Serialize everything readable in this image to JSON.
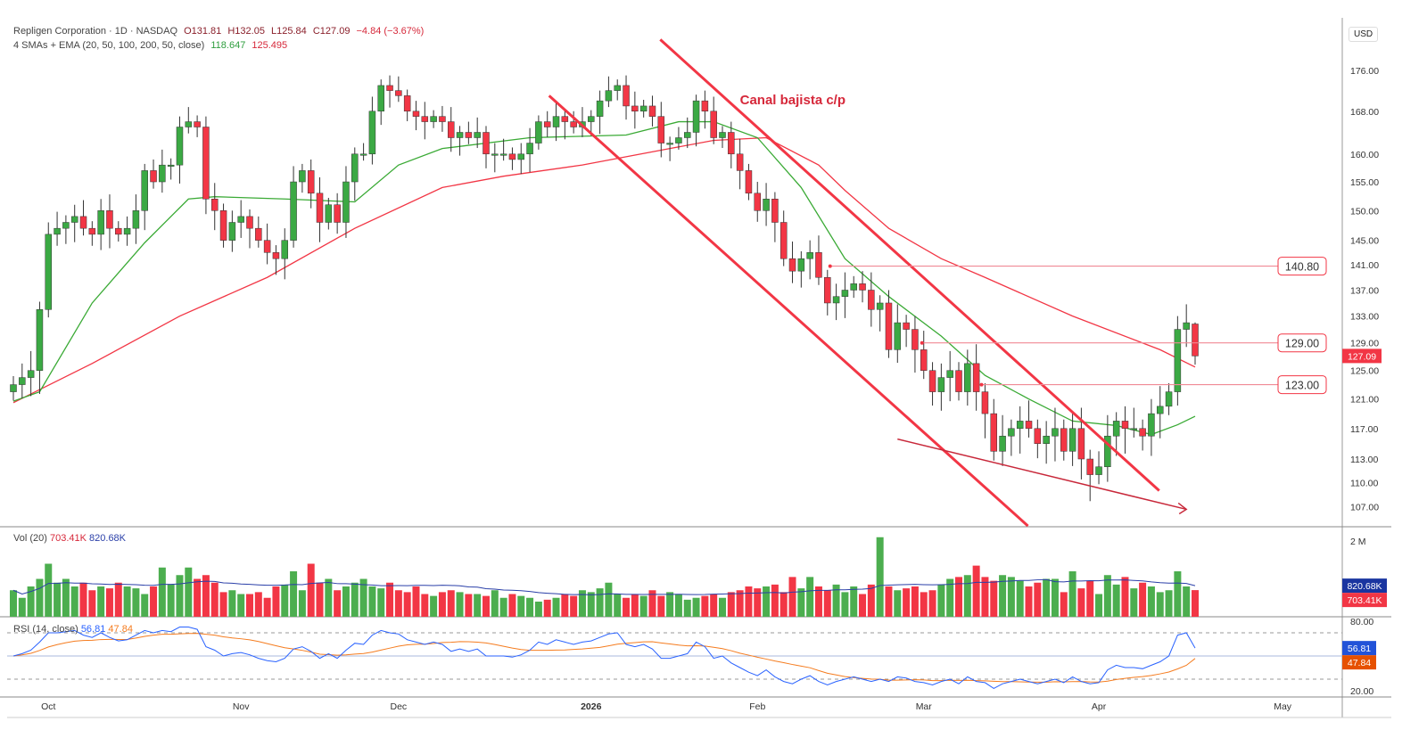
{
  "header": {
    "symbol_line": "Repligen Corporation · 1D · NASDAQ",
    "open": "O131.81",
    "high": "H132.05",
    "low": "L125.84",
    "close": "C127.09",
    "change": "−4.84 (−3.67%)",
    "ma_label": "4 SMAs + EMA (20, 50, 100, 200, 50, close)",
    "sma20_value": "118.647",
    "ema50_value": "125.495",
    "currency": "USD"
  },
  "colors": {
    "up": "#3ba944",
    "down": "#f23645",
    "sma20": "#3aaa35",
    "ema50": "#f23645",
    "rsi": "#2962ff",
    "rsi_ma": "#f57c1f",
    "vol_ma": "#2a3fa8",
    "annotation": "#f23645"
  },
  "chart_data": {
    "type": "candlestick",
    "price_scale": "log",
    "ylim": [
      104,
      184
    ],
    "price_ticks": [
      "176.00",
      "168.00",
      "160.00",
      "155.00",
      "150.00",
      "145.00",
      "141.00",
      "137.00",
      "133.00",
      "129.00",
      "125.00",
      "121.00",
      "117.00",
      "113.00",
      "110.00",
      "107.00"
    ],
    "x_labels": [
      {
        "label": "Oct",
        "index": 4
      },
      {
        "label": "Nov",
        "index": 26
      },
      {
        "label": "Dec",
        "index": 44
      },
      {
        "label": "2026",
        "index": 66
      },
      {
        "label": "Feb",
        "index": 85
      },
      {
        "label": "Mar",
        "index": 104
      },
      {
        "label": "Apr",
        "index": 124
      },
      {
        "label": "May",
        "index": 145
      }
    ],
    "last_open": 131.81,
    "last_high": 132.05,
    "last_low": 125.84,
    "closes": [
      123,
      124,
      125,
      134,
      146,
      147,
      148,
      149,
      147,
      146,
      150,
      147,
      146,
      147,
      150,
      157,
      155,
      158,
      158,
      165,
      166,
      165,
      152,
      150,
      145,
      148,
      149,
      147,
      145,
      143,
      142,
      145,
      155,
      157,
      153,
      148,
      151,
      148,
      155,
      160,
      160,
      168,
      173,
      172,
      171,
      168,
      167,
      166,
      167,
      166,
      163,
      164,
      163,
      164,
      160,
      160,
      160,
      159,
      160,
      162,
      166,
      165,
      167,
      166,
      165,
      166,
      167,
      170,
      172,
      173,
      169,
      168,
      169,
      167,
      162,
      162,
      163,
      164,
      170,
      168,
      163,
      164,
      160,
      157,
      153,
      150,
      152,
      148,
      142,
      140,
      142,
      143,
      139,
      135,
      136,
      137,
      138,
      137,
      134,
      135,
      128,
      132,
      131,
      128,
      125,
      122,
      124,
      125,
      122,
      126,
      122,
      119,
      114,
      116,
      117,
      118,
      117,
      115,
      116,
      117,
      114,
      117,
      113,
      111,
      112,
      116,
      118,
      117,
      117,
      116,
      119,
      120,
      122,
      131,
      132,
      127.09
    ],
    "sma20": [
      [
        0,
        120.7
      ],
      [
        3,
        122
      ],
      [
        9,
        135
      ],
      [
        15,
        144.6
      ],
      [
        20,
        152
      ],
      [
        23,
        152.4
      ],
      [
        31,
        152
      ],
      [
        39,
        151.5
      ],
      [
        44,
        158
      ],
      [
        49,
        161
      ],
      [
        59,
        163
      ],
      [
        70,
        163.5
      ],
      [
        76,
        166
      ],
      [
        80,
        166
      ],
      [
        85,
        163
      ],
      [
        90,
        154
      ],
      [
        95,
        142
      ],
      [
        100,
        136
      ],
      [
        106,
        130
      ],
      [
        111,
        124.3
      ],
      [
        116,
        121
      ],
      [
        121,
        118
      ],
      [
        126,
        117.4
      ],
      [
        130,
        116.2
      ],
      [
        133,
        117.5
      ],
      [
        135,
        118.647
      ]
    ],
    "ema50": [
      [
        0,
        120.5
      ],
      [
        9,
        126
      ],
      [
        19,
        133
      ],
      [
        29,
        139
      ],
      [
        39,
        147
      ],
      [
        49,
        154
      ],
      [
        56,
        156
      ],
      [
        65,
        158
      ],
      [
        75,
        161
      ],
      [
        80,
        162.5
      ],
      [
        86,
        163
      ],
      [
        92,
        158
      ],
      [
        95,
        153.5
      ],
      [
        100,
        147
      ],
      [
        106,
        142
      ],
      [
        111,
        139
      ],
      [
        121,
        133
      ],
      [
        131,
        128
      ],
      [
        135,
        125.495
      ]
    ],
    "annotations": {
      "text": "Canal bajista c/p",
      "text_anchor": [
        83,
        170
      ],
      "channel_lower": [
        [
          61.2,
          171
        ],
        [
          115.9,
          104.7
        ]
      ],
      "channel_upper": [
        [
          73.9,
          182.3
        ],
        [
          130.9,
          109
        ]
      ],
      "support_arrow": [
        [
          101,
          115.6
        ],
        [
          134,
          106.7
        ]
      ],
      "levels": [
        {
          "price": 140.8,
          "label": "140.80",
          "from": 93.3
        },
        {
          "price": 129,
          "label": "129.00",
          "from": 103.8
        },
        {
          "price": 123,
          "label": "123.00",
          "from": 110.6
        }
      ],
      "last_price_label": "127.09"
    },
    "volume": {
      "label": "Vol (20)",
      "value": "703.41K",
      "ma_value": "820.68K",
      "tick": "2 M",
      "values_k": [
        700,
        500,
        800,
        1000,
        1400,
        900,
        1000,
        800,
        900,
        700,
        800,
        750,
        900,
        800,
        750,
        600,
        800,
        1300,
        850,
        1100,
        1300,
        1000,
        1100,
        900,
        650,
        700,
        600,
        600,
        650,
        500,
        800,
        850,
        1200,
        700,
        1400,
        900,
        1000,
        700,
        800,
        900,
        1000,
        800,
        750,
        900,
        700,
        650,
        800,
        600,
        550,
        650,
        700,
        650,
        600,
        600,
        550,
        700,
        500,
        600,
        550,
        500,
        400,
        450,
        500,
        600,
        550,
        700,
        650,
        750,
        900,
        600,
        500,
        600,
        550,
        700,
        550,
        650,
        600,
        450,
        500,
        550,
        600,
        500,
        650,
        700,
        800,
        750,
        800,
        850,
        650,
        1050,
        750,
        1050,
        800,
        700,
        850,
        650,
        800,
        600,
        850,
        2100,
        800,
        700,
        750,
        800,
        650,
        700,
        850,
        1000,
        1050,
        1100,
        1350,
        1050,
        950,
        1100,
        1050,
        950,
        800,
        900,
        1000,
        1000,
        650,
        1200,
        750,
        950,
        600,
        1100,
        850,
        1050,
        750,
        900,
        800,
        650,
        700,
        1200,
        800,
        703.41
      ],
      "ma_last_k": 820.68
    },
    "rsi": {
      "label": "RSI (14, close)",
      "value": "56.81",
      "ma_value": "47.84",
      "ticks": [
        "80.00",
        "20.00"
      ],
      "bands": [
        70,
        50,
        30
      ],
      "values": [
        50,
        52,
        55,
        62,
        70,
        70,
        71,
        72,
        68,
        66,
        70,
        66,
        63,
        64,
        68,
        72,
        70,
        72,
        71,
        75,
        75,
        73,
        58,
        55,
        50,
        52,
        53,
        51,
        48,
        46,
        45,
        48,
        56,
        58,
        54,
        48,
        52,
        48,
        55,
        61,
        60,
        68,
        72,
        70,
        69,
        64,
        62,
        60,
        62,
        60,
        54,
        56,
        54,
        56,
        50,
        50,
        50,
        49,
        51,
        55,
        62,
        60,
        64,
        62,
        60,
        62,
        63,
        66,
        69,
        70,
        60,
        58,
        60,
        56,
        48,
        48,
        50,
        52,
        62,
        58,
        48,
        50,
        44,
        40,
        36,
        33,
        38,
        32,
        28,
        26,
        30,
        33,
        28,
        25,
        28,
        30,
        32,
        30,
        28,
        30,
        28,
        32,
        31,
        28,
        27,
        25,
        28,
        30,
        26,
        32,
        28,
        27,
        22,
        26,
        28,
        30,
        28,
        26,
        28,
        30,
        27,
        32,
        28,
        26,
        27,
        38,
        42,
        40,
        40,
        39,
        42,
        45,
        50,
        68,
        70,
        56.81
      ],
      "ma_last": 47.84
    }
  }
}
